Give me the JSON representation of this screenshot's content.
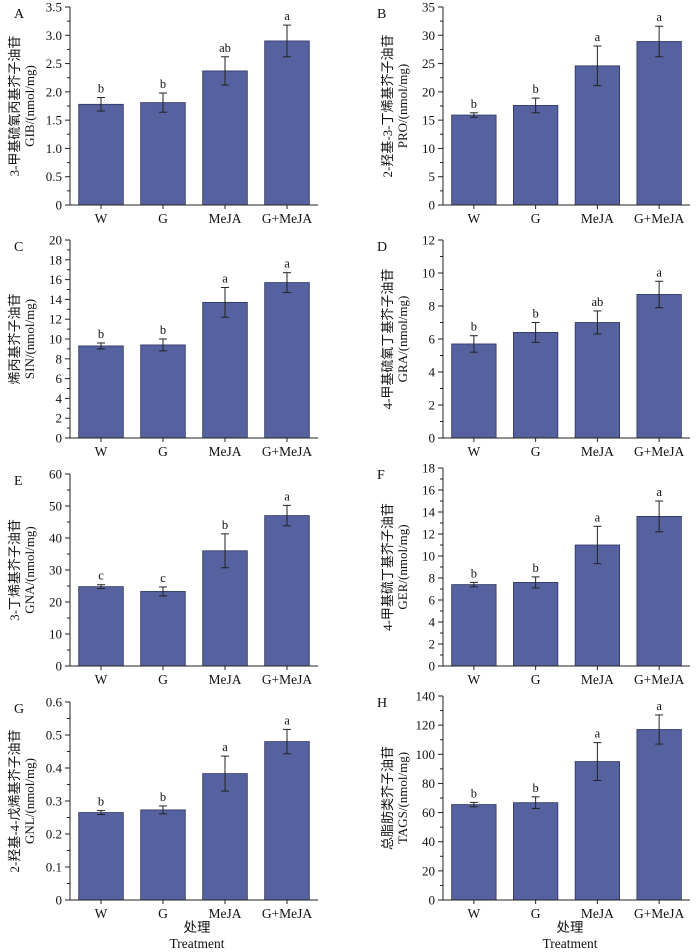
{
  "figure": {
    "x_label_zh": "处理",
    "x_label_en": "Treatment",
    "bar_color": "#56619f"
  },
  "chart_data": [
    {
      "type": "bar",
      "panel": "A",
      "ylabel_zh": "3-甲基硫氧丙基芥子油苷",
      "ylabel_en": "GIB/(nmol/mg)",
      "categories": [
        "W",
        "G",
        "MeJA",
        "G+MeJA"
      ],
      "values": [
        1.78,
        1.81,
        2.37,
        2.9
      ],
      "errors": [
        0.12,
        0.17,
        0.25,
        0.28
      ],
      "significance": [
        "b",
        "b",
        "ab",
        "a"
      ],
      "ylim": [
        0,
        3.5
      ],
      "yticks": [
        0,
        0.5,
        1.0,
        1.5,
        2.0,
        2.5,
        3.0,
        3.5
      ],
      "ytick_labels": [
        "0",
        "0.5",
        "1.0",
        "1.5",
        "2.0",
        "2.5",
        "3.0",
        "3.5"
      ]
    },
    {
      "type": "bar",
      "panel": "B",
      "ylabel_zh": "2-羟基-3-丁烯基芥子油苷",
      "ylabel_en": "PRO/(nmol/mg)",
      "categories": [
        "W",
        "G",
        "MeJA",
        "G+MeJA"
      ],
      "values": [
        15.9,
        17.6,
        24.6,
        28.9
      ],
      "errors": [
        0.4,
        1.3,
        3.5,
        2.7
      ],
      "significance": [
        "b",
        "b",
        "a",
        "a"
      ],
      "ylim": [
        0,
        35
      ],
      "yticks": [
        0,
        5,
        10,
        15,
        20,
        25,
        30,
        35
      ],
      "ytick_labels": [
        "0",
        "5",
        "10",
        "15",
        "20",
        "25",
        "30",
        "35"
      ]
    },
    {
      "type": "bar",
      "panel": "C",
      "ylabel_zh": "烯丙基芥子油苷",
      "ylabel_en": "SIN/(nmol/mg)",
      "categories": [
        "W",
        "G",
        "MeJA",
        "G+MeJA"
      ],
      "values": [
        9.3,
        9.4,
        13.7,
        15.7
      ],
      "errors": [
        0.3,
        0.6,
        1.5,
        1.0
      ],
      "significance": [
        "b",
        "b",
        "a",
        "a"
      ],
      "ylim": [
        0,
        20
      ],
      "yticks": [
        0,
        2,
        4,
        6,
        8,
        10,
        12,
        14,
        16,
        18,
        20
      ],
      "ytick_labels": [
        "0",
        "2",
        "4",
        "6",
        "8",
        "10",
        "12",
        "14",
        "16",
        "18",
        "20"
      ]
    },
    {
      "type": "bar",
      "panel": "D",
      "ylabel_zh": "4-甲基硫氧丁基芥子油苷",
      "ylabel_en": "GRA/(nmol/mg)",
      "categories": [
        "W",
        "G",
        "MeJA",
        "G+MeJA"
      ],
      "values": [
        5.7,
        6.4,
        7.0,
        8.7
      ],
      "errors": [
        0.5,
        0.6,
        0.7,
        0.8
      ],
      "significance": [
        "b",
        "b",
        "ab",
        "a"
      ],
      "ylim": [
        0,
        12
      ],
      "yticks": [
        0,
        2,
        4,
        6,
        8,
        10,
        12
      ],
      "ytick_labels": [
        "0",
        "2",
        "4",
        "6",
        "8",
        "10",
        "12"
      ]
    },
    {
      "type": "bar",
      "panel": "E",
      "ylabel_zh": "3-丁烯基芥子油苷",
      "ylabel_en": "GNA/(nmol/mg)",
      "categories": [
        "W",
        "G",
        "MeJA",
        "G+MeJA"
      ],
      "values": [
        24.8,
        23.3,
        36.0,
        47.0
      ],
      "errors": [
        0.6,
        1.4,
        5.3,
        3.2
      ],
      "significance": [
        "c",
        "c",
        "b",
        "a"
      ],
      "ylim": [
        0,
        60
      ],
      "yticks": [
        0,
        10,
        20,
        30,
        40,
        50,
        60
      ],
      "ytick_labels": [
        "0",
        "10",
        "20",
        "30",
        "40",
        "50",
        "60"
      ]
    },
    {
      "type": "bar",
      "panel": "F",
      "ylabel_zh": "4-甲基硫丁基芥子油苷",
      "ylabel_en": "GER/(nmol/mg)",
      "categories": [
        "W",
        "G",
        "MeJA",
        "G+MeJA"
      ],
      "values": [
        7.4,
        7.6,
        11.0,
        13.6
      ],
      "errors": [
        0.2,
        0.5,
        1.7,
        1.4
      ],
      "significance": [
        "b",
        "b",
        "a",
        "a"
      ],
      "ylim": [
        0,
        18
      ],
      "yticks": [
        0,
        2,
        4,
        6,
        8,
        10,
        12,
        14,
        16,
        18
      ],
      "ytick_labels": [
        "0",
        "2",
        "4",
        "6",
        "8",
        "10",
        "12",
        "14",
        "16",
        "18"
      ]
    },
    {
      "type": "bar",
      "panel": "G",
      "ylabel_zh": "2-羟基-4-戊烯基芥子油苷",
      "ylabel_en": "GNL/(nmol/mg)",
      "categories": [
        "W",
        "G",
        "MeJA",
        "G+MeJA"
      ],
      "values": [
        0.265,
        0.273,
        0.383,
        0.48
      ],
      "errors": [
        0.006,
        0.012,
        0.053,
        0.037
      ],
      "significance": [
        "b",
        "b",
        "a",
        "a"
      ],
      "ylim": [
        0,
        0.6
      ],
      "yticks": [
        0,
        0.1,
        0.2,
        0.3,
        0.4,
        0.5,
        0.6
      ],
      "ytick_labels": [
        "0",
        "0.1",
        "0.2",
        "0.3",
        "0.4",
        "0.5",
        "0.6"
      ]
    },
    {
      "type": "bar",
      "panel": "H",
      "ylabel_zh": "总脂肪类芥子油苷",
      "ylabel_en": "TAGS/(nmol/mg)",
      "categories": [
        "W",
        "G",
        "MeJA",
        "G+MeJA"
      ],
      "values": [
        65.5,
        66.8,
        95.0,
        117.0
      ],
      "errors": [
        1.5,
        4.0,
        13.0,
        10.0
      ],
      "significance": [
        "b",
        "b",
        "a",
        "a"
      ],
      "ylim": [
        0,
        140
      ],
      "yticks": [
        0,
        20,
        40,
        60,
        80,
        100,
        120,
        140
      ],
      "ytick_labels": [
        "0",
        "20",
        "40",
        "60",
        "80",
        "100",
        "120",
        "140"
      ]
    }
  ]
}
